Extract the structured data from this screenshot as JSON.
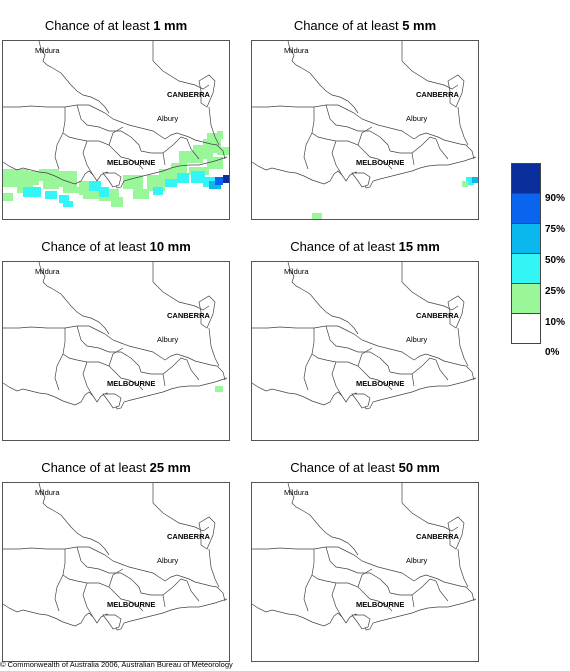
{
  "panels": [
    {
      "title_prefix": "Chance of at least ",
      "title_value": "1 mm"
    },
    {
      "title_prefix": "Chance of at least ",
      "title_value": "5 mm"
    },
    {
      "title_prefix": "Chance of at least ",
      "title_value": "10 mm"
    },
    {
      "title_prefix": "Chance of at least ",
      "title_value": "15 mm"
    },
    {
      "title_prefix": "Chance of at least ",
      "title_value": "25 mm"
    },
    {
      "title_prefix": "Chance of at least ",
      "title_value": "50 mm"
    }
  ],
  "places": {
    "mildura": "Mildura",
    "canberra": "CANBERRA",
    "albury": "Albury",
    "melbourne": "MELBOURNE"
  },
  "legend": {
    "labels": [
      "90%",
      "75%",
      "50%",
      "25%",
      "10%",
      "0%"
    ],
    "colors": [
      "#0a2f9c",
      "#0a64ee",
      "#0bb8ee",
      "#33f5f5",
      "#99f799",
      "#ffffff"
    ]
  },
  "colors": {
    "chance_10_25": "#99f799",
    "chance_25_50": "#33f5f5",
    "chance_50_75": "#0bb8ee",
    "chance_75_90": "#0a64ee",
    "chance_90_plus": "#0a2f9c"
  },
  "copyright": "© Commonwealth of Australia 2006, Australian Bureau of Meteorology"
}
